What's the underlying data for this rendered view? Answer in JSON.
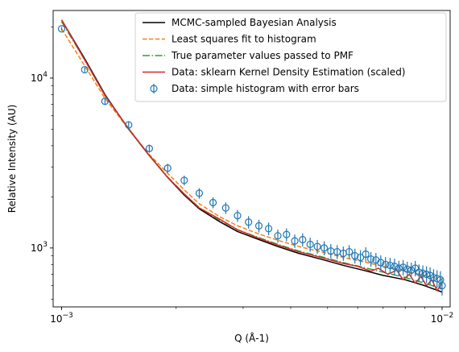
{
  "chart_data": {
    "type": "line",
    "xscale": "log",
    "yscale": "log",
    "xlabel": "Q (Å-1)",
    "ylabel": "Relative Intensity (AU)",
    "xlim": [
      0.00095,
      0.0105
    ],
    "ylim": [
      450,
      25000
    ],
    "x_ticks": [
      {
        "value": 0.001,
        "base": "10",
        "exp": "−3"
      },
      {
        "value": 0.01,
        "base": "10",
        "exp": "−2"
      }
    ],
    "y_ticks": [
      {
        "value": 1000,
        "base": "10",
        "exp": "3"
      },
      {
        "value": 10000,
        "base": "10",
        "exp": "4"
      }
    ],
    "legend_position": "top-right",
    "series": [
      {
        "name": "MCMC-sampled Bayesian Analysis",
        "style": "solid",
        "color": "#000000",
        "x": [
          0.001,
          0.00115,
          0.0013,
          0.0015,
          0.0017,
          0.0019,
          0.0021,
          0.0023,
          0.0026,
          0.0029,
          0.0033,
          0.0037,
          0.0042,
          0.0048,
          0.0055,
          0.0062,
          0.007,
          0.008,
          0.009,
          0.01
        ],
        "y": [
          22000,
          13000,
          8000,
          5000,
          3500,
          2600,
          2050,
          1700,
          1430,
          1250,
          1120,
          1020,
          930,
          860,
          790,
          740,
          690,
          650,
          600,
          550
        ]
      },
      {
        "name": "Least squares fit to histogram",
        "style": "dashed",
        "color": "#ff7f0e",
        "x": [
          0.001,
          0.00115,
          0.0013,
          0.0015,
          0.0017,
          0.0019,
          0.0021,
          0.0023,
          0.0026,
          0.0029,
          0.0033,
          0.0037,
          0.0042,
          0.0048,
          0.0055,
          0.0062,
          0.007,
          0.008,
          0.009,
          0.01
        ],
        "y": [
          19500,
          11800,
          7600,
          5000,
          3550,
          2750,
          2200,
          1820,
          1530,
          1350,
          1210,
          1110,
          1020,
          950,
          880,
          830,
          780,
          730,
          690,
          650
        ]
      },
      {
        "name": "True parameter values passed to PMF",
        "style": "dashdot",
        "color": "#2ca02c",
        "x": [
          0.001,
          0.00115,
          0.0013,
          0.0015,
          0.0017,
          0.0019,
          0.0021,
          0.0023,
          0.0026,
          0.0029,
          0.0033,
          0.0037,
          0.0042,
          0.0048,
          0.0055,
          0.0062,
          0.007,
          0.008,
          0.009,
          0.01
        ],
        "y": [
          21500,
          12800,
          7900,
          5000,
          3520,
          2620,
          2080,
          1730,
          1460,
          1280,
          1150,
          1050,
          960,
          890,
          820,
          770,
          720,
          670,
          620,
          575
        ]
      },
      {
        "name": "Data: sklearn Kernel Density Estimation (scaled)",
        "style": "solid",
        "color": "#d62728",
        "x": [
          0.001,
          0.00115,
          0.0013,
          0.0015,
          0.0017,
          0.0019,
          0.0021,
          0.0023,
          0.0026,
          0.0029,
          0.0033,
          0.0037,
          0.0042,
          0.0048,
          0.0055,
          0.006,
          0.0065,
          0.0068,
          0.0072,
          0.0076,
          0.0079,
          0.0082,
          0.0085,
          0.0088,
          0.0091,
          0.0094,
          0.0097,
          0.01
        ],
        "y": [
          22000,
          12800,
          7900,
          5050,
          3500,
          2600,
          2080,
          1720,
          1480,
          1280,
          1140,
          1040,
          950,
          880,
          810,
          780,
          730,
          760,
          700,
          740,
          650,
          700,
          620,
          680,
          600,
          650,
          560,
          620
        ]
      }
    ],
    "histogram": {
      "name": "Data: simple histogram with error bars",
      "color": "#1f77b4",
      "marker": "open-circle",
      "x": [
        0.001,
        0.00115,
        0.0013,
        0.0015,
        0.0017,
        0.0019,
        0.0021,
        0.0023,
        0.0025,
        0.0027,
        0.0029,
        0.0031,
        0.0033,
        0.0035,
        0.0037,
        0.0039,
        0.0041,
        0.0043,
        0.0045,
        0.0047,
        0.0049,
        0.0051,
        0.0053,
        0.0055,
        0.0057,
        0.0059,
        0.0061,
        0.0063,
        0.0065,
        0.0067,
        0.0069,
        0.0071,
        0.0073,
        0.0075,
        0.0077,
        0.0079,
        0.0081,
        0.0083,
        0.0085,
        0.0087,
        0.0089,
        0.0091,
        0.0093,
        0.0095,
        0.0097,
        0.0099,
        0.01
      ],
      "y": [
        19500,
        11200,
        7300,
        5300,
        3850,
        2950,
        2500,
        2100,
        1850,
        1720,
        1550,
        1420,
        1350,
        1300,
        1180,
        1200,
        1100,
        1120,
        1050,
        1020,
        1000,
        960,
        950,
        930,
        950,
        900,
        880,
        920,
        860,
        850,
        820,
        800,
        790,
        780,
        760,
        770,
        750,
        740,
        760,
        720,
        710,
        700,
        690,
        670,
        660,
        650,
        600
      ],
      "yerr": [
        500,
        380,
        300,
        250,
        210,
        180,
        165,
        150,
        140,
        135,
        125,
        120,
        115,
        110,
        105,
        105,
        100,
        100,
        100,
        95,
        95,
        95,
        90,
        90,
        90,
        90,
        90,
        90,
        85,
        85,
        85,
        85,
        85,
        85,
        80,
        80,
        80,
        80,
        80,
        80,
        80,
        80,
        80,
        80,
        80,
        80,
        75
      ]
    }
  }
}
